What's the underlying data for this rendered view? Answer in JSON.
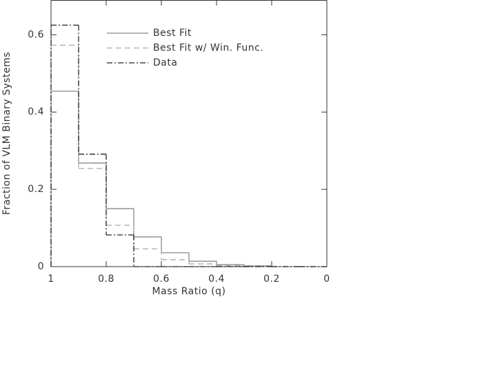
{
  "chart_data": {
    "type": "step-histogram",
    "xlabel": "Mass Ratio (q)",
    "ylabel": "Fraction of VLM Binary Systems",
    "bins": [
      1,
      0.9,
      0.8,
      0.7,
      0.6,
      0.5,
      0.4,
      0.3,
      0.2,
      0.1,
      0
    ],
    "series": [
      {
        "name": "Best Fit",
        "color": "#888888",
        "dash": "solid",
        "values": [
          0.454,
          0.268,
          0.15,
          0.077,
          0.036,
          0.014,
          0.005,
          0.002,
          0,
          0
        ]
      },
      {
        "name": "Best Fit w/ Win. Func.",
        "color": "#aaaaaa",
        "dash": "dashed",
        "values": [
          0.573,
          0.254,
          0.107,
          0.046,
          0.018,
          0.007,
          0.002,
          0,
          0,
          0
        ]
      },
      {
        "name": "Data",
        "color": "#222222",
        "dash": "dashdot",
        "values": [
          0.625,
          0.291,
          0.082,
          0,
          0,
          0,
          0,
          0,
          0,
          0
        ]
      }
    ],
    "xlim": [
      1,
      0
    ],
    "xticks": [
      1,
      0.8,
      0.6,
      0.4,
      0.2,
      0
    ],
    "ylim": [
      0,
      0.69
    ],
    "yticks": [
      0,
      0.2,
      0.4,
      0.6
    ],
    "legend": "upper-center"
  }
}
